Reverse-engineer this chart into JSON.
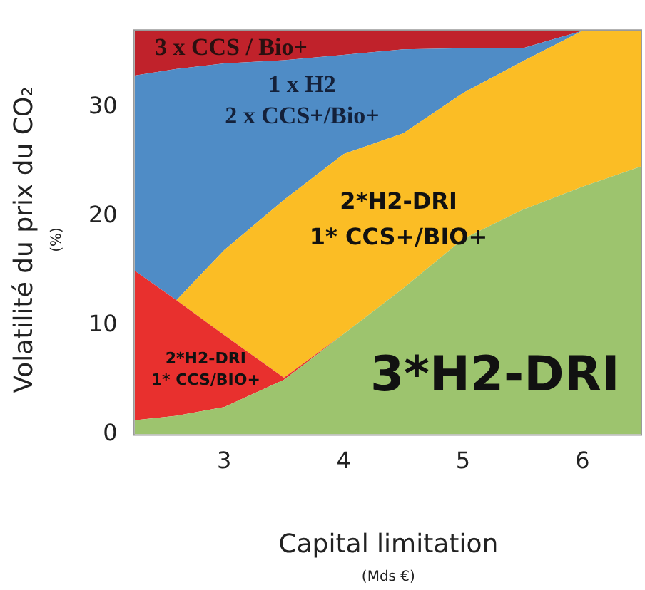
{
  "chart_data": {
    "type": "area",
    "stacked": true,
    "xlabel": "Capital limitation\n(Mds €)",
    "ylabel": "Volatilité du prix du CO₂\n(%)",
    "x": [
      2.25,
      2.6,
      3,
      3.5,
      4,
      4.5,
      5,
      5.5,
      6,
      6.5
    ],
    "xlim": [
      2.25,
      6.5
    ],
    "xticks": [
      3,
      4,
      5,
      6
    ],
    "ylim": [
      0,
      37
    ],
    "yticks": [
      0,
      10,
      20,
      30
    ],
    "series": [
      {
        "color": "#9dc46e",
        "values": [
          1.3,
          1.7,
          2.5,
          5.0,
          9.2,
          13.4,
          17.9,
          20.6,
          22.7,
          24.6
        ]
      },
      {
        "color": "#e8302e",
        "values": [
          13.7,
          10.6,
          6.6,
          0.2,
          0,
          0,
          0,
          0,
          0,
          0
        ]
      },
      {
        "color": "#fbbd25",
        "values": [
          0,
          0,
          7.8,
          16.3,
          16.5,
          14.2,
          13.4,
          13.6,
          14.3,
          12.4
        ]
      },
      {
        "color": "#4f8cc6",
        "values": [
          17.9,
          21.2,
          17.1,
          12.8,
          9.1,
          7.7,
          4.1,
          1.2,
          0,
          0
        ]
      },
      {
        "color": "#c0222b",
        "values": [
          4.1,
          3.5,
          3.0,
          2.7,
          2.2,
          1.7,
          1.6,
          1.6,
          0,
          0
        ]
      }
    ],
    "annotations": [
      "3 x CCS / Bio+",
      "1 x H2\n2 x CCS+/Bio+",
      "2*H2-DRI\n1* CCS+/BIO+",
      "2*H2-DRI\n1* CCS/BIO+",
      "3*H2-DRI"
    ]
  }
}
